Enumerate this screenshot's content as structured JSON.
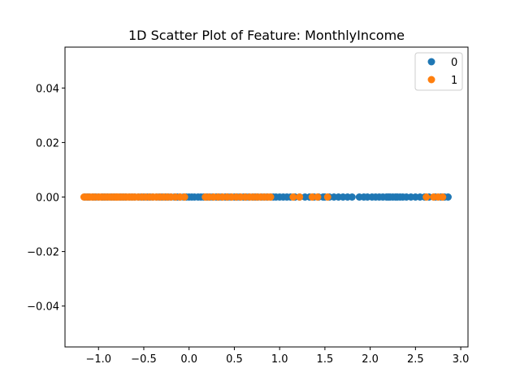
{
  "chart_data": {
    "type": "scatter",
    "title": "1D Scatter Plot of Feature: MonthlyIncome",
    "xlabel": "",
    "ylabel": "",
    "xlim": [
      -1.37,
      3.08
    ],
    "ylim": [
      -0.055,
      0.055
    ],
    "grid": false,
    "legend_position": "top-right",
    "x_ticks": [
      -1.0,
      -0.5,
      0.0,
      0.5,
      1.0,
      1.5,
      2.0,
      2.5,
      3.0
    ],
    "x_tick_labels": [
      "−1.0",
      "−0.5",
      "0.0",
      "0.5",
      "1.0",
      "1.5",
      "2.0",
      "2.5",
      "3.0"
    ],
    "y_ticks": [
      -0.04,
      -0.02,
      0.0,
      0.02,
      0.04
    ],
    "y_tick_labels": [
      "−0.04",
      "−0.02",
      "0.00",
      "0.02",
      "0.04"
    ],
    "series": [
      {
        "name": "0",
        "color": "#1f77b4",
        "x": [
          -1.15,
          -1.12,
          -1.1,
          -1.06,
          -1.03,
          -1.0,
          -0.96,
          -0.93,
          -0.9,
          -0.86,
          -0.83,
          -0.8,
          -0.76,
          -0.73,
          -0.7,
          -0.66,
          -0.63,
          -0.6,
          -0.56,
          -0.53,
          -0.5,
          -0.46,
          -0.43,
          -0.4,
          -0.36,
          -0.33,
          -0.3,
          -0.26,
          -0.23,
          -0.2,
          -0.16,
          -0.13,
          -0.1,
          -0.06,
          -0.03,
          0.0,
          0.03,
          0.06,
          0.1,
          0.13,
          0.16,
          0.2,
          0.23,
          0.26,
          0.3,
          0.33,
          0.36,
          0.4,
          0.43,
          0.46,
          0.5,
          0.53,
          0.56,
          0.6,
          0.63,
          0.66,
          0.7,
          0.73,
          0.76,
          0.8,
          0.83,
          0.86,
          0.9,
          0.93,
          0.96,
          1.0,
          1.04,
          1.08,
          1.12,
          1.17,
          1.22,
          1.28,
          1.33,
          1.38,
          1.43,
          1.48,
          1.5,
          1.55,
          1.6,
          1.65,
          1.7,
          1.75,
          1.8,
          1.88,
          1.93,
          1.97,
          2.02,
          2.06,
          2.1,
          2.14,
          2.18,
          2.2,
          2.22,
          2.25,
          2.28,
          2.3,
          2.33,
          2.36,
          2.4,
          2.45,
          2.5,
          2.55,
          2.6,
          2.65,
          2.72,
          2.78,
          2.82,
          2.86
        ],
        "y": [
          0,
          0,
          0,
          0,
          0,
          0,
          0,
          0,
          0,
          0,
          0,
          0,
          0,
          0,
          0,
          0,
          0,
          0,
          0,
          0,
          0,
          0,
          0,
          0,
          0,
          0,
          0,
          0,
          0,
          0,
          0,
          0,
          0,
          0,
          0,
          0,
          0,
          0,
          0,
          0,
          0,
          0,
          0,
          0,
          0,
          0,
          0,
          0,
          0,
          0,
          0,
          0,
          0,
          0,
          0,
          0,
          0,
          0,
          0,
          0,
          0,
          0,
          0,
          0,
          0,
          0,
          0,
          0,
          0,
          0,
          0,
          0,
          0,
          0,
          0,
          0,
          0,
          0,
          0,
          0,
          0,
          0,
          0,
          0,
          0,
          0,
          0,
          0,
          0,
          0,
          0,
          0,
          0,
          0,
          0,
          0,
          0,
          0,
          0,
          0,
          0,
          0,
          0,
          0,
          0,
          0,
          0,
          0
        ]
      },
      {
        "name": "1",
        "color": "#ff7f0e",
        "x": [
          -1.16,
          -1.13,
          -1.1,
          -1.07,
          -1.04,
          -1.0,
          -0.97,
          -0.94,
          -0.91,
          -0.88,
          -0.85,
          -0.82,
          -0.8,
          -0.78,
          -0.75,
          -0.72,
          -0.69,
          -0.66,
          -0.63,
          -0.6,
          -0.56,
          -0.52,
          -0.48,
          -0.44,
          -0.4,
          -0.36,
          -0.32,
          -0.28,
          -0.24,
          -0.2,
          -0.15,
          -0.1,
          -0.05,
          0.18,
          0.22,
          0.27,
          0.32,
          0.37,
          0.42,
          0.47,
          0.52,
          0.57,
          0.62,
          0.67,
          0.71,
          0.75,
          0.79,
          0.83,
          0.87,
          0.9,
          1.15,
          1.22,
          1.36,
          1.42,
          1.53,
          2.62,
          2.7,
          2.75,
          2.8
        ],
        "y": [
          0,
          0,
          0,
          0,
          0,
          0,
          0,
          0,
          0,
          0,
          0,
          0,
          0,
          0,
          0,
          0,
          0,
          0,
          0,
          0,
          0,
          0,
          0,
          0,
          0,
          0,
          0,
          0,
          0,
          0,
          0,
          0,
          0,
          0,
          0,
          0,
          0,
          0,
          0,
          0,
          0,
          0,
          0,
          0,
          0,
          0,
          0,
          0,
          0,
          0,
          0,
          0,
          0,
          0,
          0,
          0,
          0,
          0,
          0
        ]
      }
    ]
  }
}
